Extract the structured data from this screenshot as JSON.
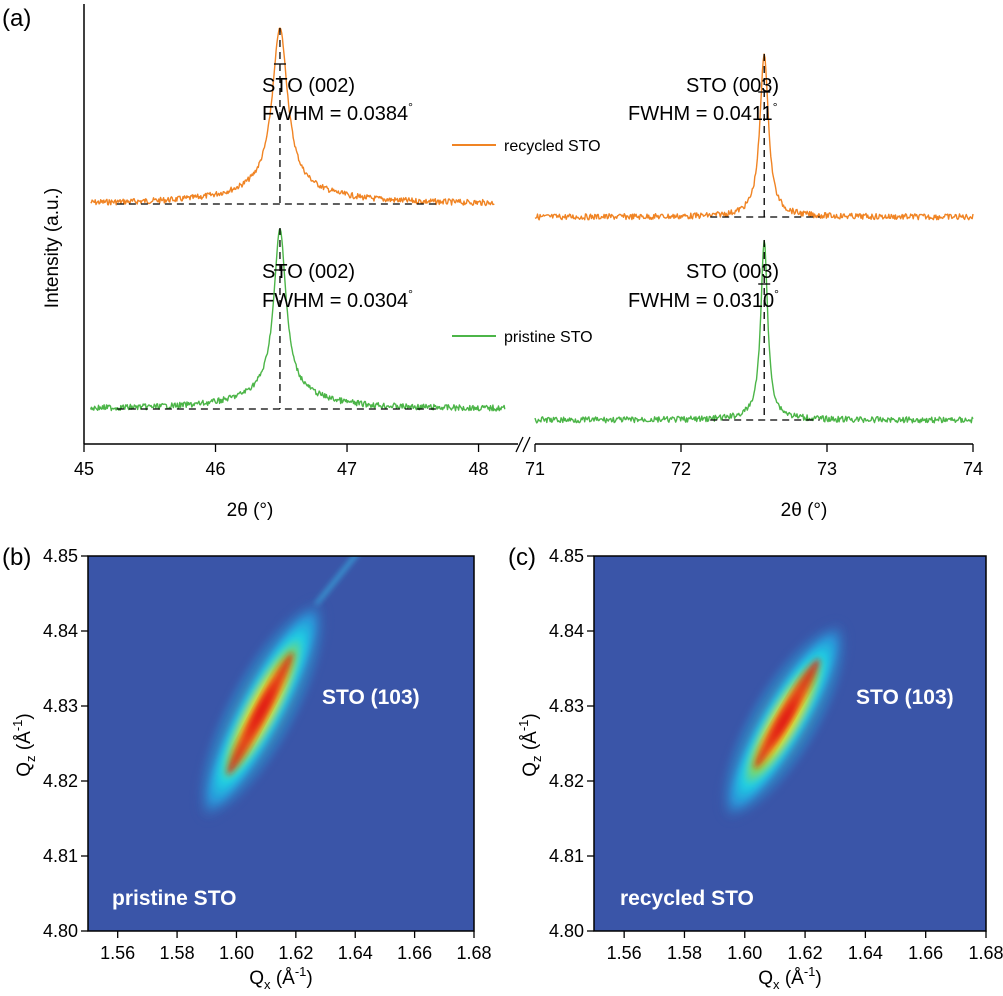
{
  "colors": {
    "recycled": "#F08424",
    "pristine": "#4CB548",
    "map_background": "#3A55A8"
  },
  "chart_data": [
    {
      "panel": "(a)",
      "type": "line",
      "ylabel": "Intensity (a.u.)",
      "broken_x_axis": true,
      "segments": [
        {
          "xlim": [
            45,
            48.3
          ],
          "ticks": [
            "45",
            "46",
            "47",
            "48"
          ],
          "xlabel": "2θ (°)",
          "peak_position": 46.49,
          "peak_label": "STO (002)",
          "fwhm": {
            "recycled": "FWHM = 0.0384",
            "pristine": "FWHM = 0.0304"
          },
          "dashed_baseline_range": [
            45.25,
            47.7
          ]
        },
        {
          "xlim": [
            71,
            74
          ],
          "ticks": [
            "71",
            "72",
            "73",
            "74"
          ],
          "xlabel": "2θ (°)",
          "peak_position": 72.57,
          "peak_label": "STO (003)",
          "fwhm": {
            "recycled": "FWHM = 0.0411",
            "pristine": "FWHM = 0.0310"
          },
          "dashed_baseline_range": [
            72.2,
            72.95
          ]
        }
      ],
      "series": [
        {
          "name": "recycled STO",
          "color": "#F08424"
        },
        {
          "name": "pristine STO",
          "color": "#4CB548"
        }
      ],
      "degree_symbol": "°"
    },
    {
      "panel": "(b)",
      "type": "heatmap",
      "sample_label": "pristine STO",
      "peak_label": "STO (103)",
      "xlabel_main": "Q",
      "xlabel_sub": "x",
      "xlabel_unit": " (Å",
      "xlabel_exp": "-1",
      "xlabel_close": ")",
      "ylabel_main": "Q",
      "ylabel_sub": "z",
      "ylabel_unit": " (Å",
      "ylabel_exp": "-1",
      "ylabel_close": ")",
      "xlim": [
        1.55,
        1.68
      ],
      "ylim": [
        4.8,
        4.85
      ],
      "xticks": [
        "1.56",
        "1.58",
        "1.60",
        "1.62",
        "1.64",
        "1.66",
        "1.68"
      ],
      "yticks": [
        "4.80",
        "4.81",
        "4.82",
        "4.83",
        "4.84",
        "4.85"
      ],
      "blob": {
        "qx_start": 1.589,
        "qz_start": 4.815,
        "qx_end": 1.628,
        "qz_end": 4.844,
        "peak_qx": 1.608,
        "peak_qz": 4.829
      }
    },
    {
      "panel": "(c)",
      "type": "heatmap",
      "sample_label": "recycled STO",
      "peak_label": "STO (103)",
      "xlabel_main": "Q",
      "xlabel_sub": "x",
      "xlabel_unit": " (Å",
      "xlabel_exp": "-1",
      "xlabel_close": ")",
      "ylabel_main": "Q",
      "ylabel_sub": "z",
      "ylabel_unit": " (Å",
      "ylabel_exp": "-1",
      "ylabel_close": ")",
      "xlim": [
        1.55,
        1.68
      ],
      "ylim": [
        4.8,
        4.85
      ],
      "xticks": [
        "1.56",
        "1.58",
        "1.60",
        "1.62",
        "1.64",
        "1.66",
        "1.68"
      ],
      "yticks": [
        "4.80",
        "4.81",
        "4.82",
        "4.83",
        "4.84",
        "4.85"
      ],
      "blob": {
        "qx_start": 1.594,
        "qz_start": 4.815,
        "qx_end": 1.632,
        "qz_end": 4.841,
        "peak_qx": 1.614,
        "peak_qz": 4.829
      }
    }
  ]
}
